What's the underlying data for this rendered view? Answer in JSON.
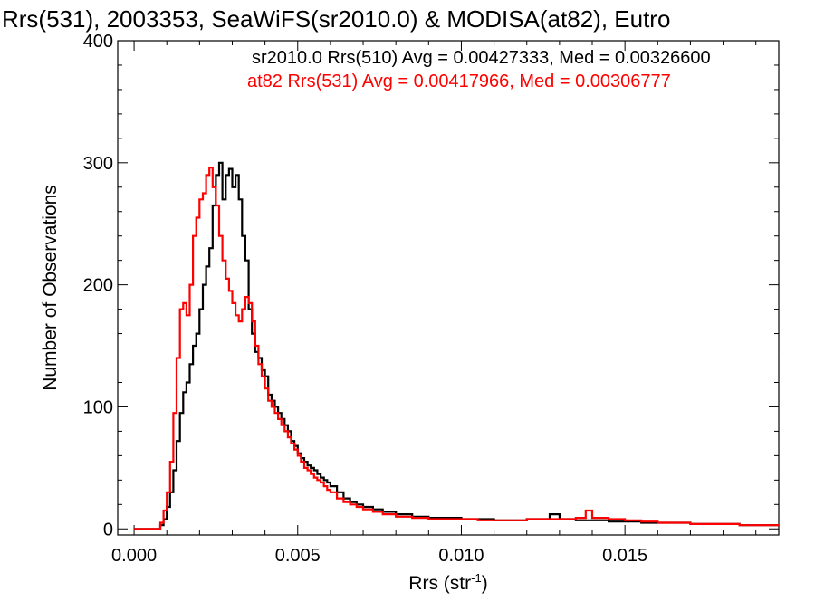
{
  "chart_data": {
    "type": "line",
    "title": "Rrs(531), 2003353, SeaWiFS(sr2010.0) & MODISA(at82), Eutro",
    "xlabel": "Rrs (str",
    "xlabel_sup": "-1",
    "xlabel_close": ")",
    "ylabel": "Number of Observations",
    "xlim": [
      -0.0005,
      0.0197
    ],
    "ylim": [
      -5,
      400
    ],
    "xticks": [
      0.0,
      0.005,
      0.01,
      0.015
    ],
    "xtick_labels": [
      "0.000",
      "0.005",
      "0.010",
      "0.015"
    ],
    "yticks": [
      0,
      100,
      200,
      300,
      400
    ],
    "ytick_labels": [
      "0",
      "100",
      "200",
      "300",
      "400"
    ],
    "grid": false,
    "legend_placement": "top-right",
    "series": [
      {
        "name": "sr2010.0 Rrs(510) Avg = 0.00427333, Med = 0.00326600",
        "color": "#000000",
        "x": [
          0.0,
          0.0002,
          0.0004,
          0.0006,
          0.0008,
          0.0009,
          0.001,
          0.0011,
          0.0012,
          0.0013,
          0.0014,
          0.0015,
          0.0016,
          0.0017,
          0.0018,
          0.0019,
          0.002,
          0.0021,
          0.0022,
          0.0023,
          0.0024,
          0.0025,
          0.0026,
          0.0027,
          0.0028,
          0.0029,
          0.003,
          0.0031,
          0.0032,
          0.0033,
          0.0034,
          0.0035,
          0.0036,
          0.0037,
          0.0038,
          0.0039,
          0.004,
          0.0041,
          0.0042,
          0.0043,
          0.0044,
          0.0045,
          0.0046,
          0.0047,
          0.0048,
          0.0049,
          0.005,
          0.0051,
          0.0052,
          0.0053,
          0.0054,
          0.0055,
          0.0056,
          0.0057,
          0.0058,
          0.0059,
          0.006,
          0.0062,
          0.0064,
          0.0066,
          0.0068,
          0.007,
          0.0073,
          0.0076,
          0.008,
          0.0085,
          0.009,
          0.0095,
          0.01,
          0.0105,
          0.011,
          0.0115,
          0.012,
          0.0125,
          0.0127,
          0.013,
          0.0135,
          0.014,
          0.0145,
          0.015,
          0.0155,
          0.016,
          0.0165,
          0.017,
          0.0175,
          0.018,
          0.0185,
          0.019,
          0.0197
        ],
        "y": [
          0,
          0,
          0,
          0,
          3,
          8,
          18,
          30,
          48,
          72,
          95,
          112,
          120,
          135,
          150,
          160,
          180,
          200,
          215,
          230,
          265,
          290,
          300,
          270,
          290,
          295,
          280,
          290,
          270,
          240,
          220,
          180,
          160,
          145,
          140,
          130,
          125,
          110,
          105,
          100,
          95,
          90,
          85,
          80,
          72,
          68,
          62,
          58,
          55,
          52,
          50,
          48,
          45,
          42,
          40,
          38,
          35,
          30,
          25,
          22,
          20,
          18,
          16,
          14,
          12,
          10,
          9,
          9,
          8,
          8,
          7,
          7,
          8,
          8,
          12,
          8,
          7,
          7,
          6,
          6,
          5,
          5,
          5,
          4,
          4,
          4,
          3,
          3,
          3
        ]
      },
      {
        "name": "at82 Rrs(531) Avg = 0.00417966, Med = 0.00306777",
        "color": "#ff0000",
        "x": [
          0.0,
          0.0002,
          0.0004,
          0.0006,
          0.0008,
          0.0009,
          0.001,
          0.0011,
          0.0012,
          0.0013,
          0.0014,
          0.0015,
          0.0016,
          0.0017,
          0.0018,
          0.0019,
          0.002,
          0.0021,
          0.0022,
          0.0023,
          0.0024,
          0.0025,
          0.0026,
          0.0027,
          0.0028,
          0.0029,
          0.003,
          0.0031,
          0.0032,
          0.0033,
          0.0034,
          0.0035,
          0.0036,
          0.0037,
          0.0038,
          0.0039,
          0.004,
          0.0041,
          0.0042,
          0.0043,
          0.0044,
          0.0045,
          0.0046,
          0.0047,
          0.0048,
          0.0049,
          0.005,
          0.0051,
          0.0052,
          0.0053,
          0.0054,
          0.0055,
          0.0056,
          0.0057,
          0.0058,
          0.0059,
          0.006,
          0.0062,
          0.0064,
          0.0066,
          0.0068,
          0.007,
          0.0073,
          0.0076,
          0.008,
          0.0085,
          0.009,
          0.0095,
          0.01,
          0.0105,
          0.011,
          0.0115,
          0.012,
          0.0125,
          0.013,
          0.0135,
          0.0138,
          0.014,
          0.0145,
          0.015,
          0.0155,
          0.016,
          0.0165,
          0.017,
          0.0175,
          0.018,
          0.0185,
          0.019,
          0.0197
        ],
        "y": [
          0,
          0,
          0,
          0,
          5,
          15,
          30,
          55,
          95,
          140,
          180,
          185,
          175,
          200,
          240,
          255,
          270,
          275,
          290,
          296,
          280,
          265,
          240,
          220,
          205,
          195,
          185,
          175,
          170,
          180,
          190,
          185,
          170,
          150,
          135,
          125,
          115,
          105,
          100,
          95,
          90,
          85,
          80,
          75,
          70,
          65,
          60,
          55,
          50,
          48,
          45,
          42,
          40,
          38,
          35,
          32,
          30,
          25,
          22,
          20,
          18,
          16,
          14,
          12,
          10,
          9,
          8,
          8,
          8,
          7,
          7,
          7,
          8,
          8,
          8,
          9,
          15,
          9,
          8,
          7,
          6,
          5,
          5,
          4,
          4,
          4,
          3,
          3,
          3
        ]
      }
    ]
  }
}
